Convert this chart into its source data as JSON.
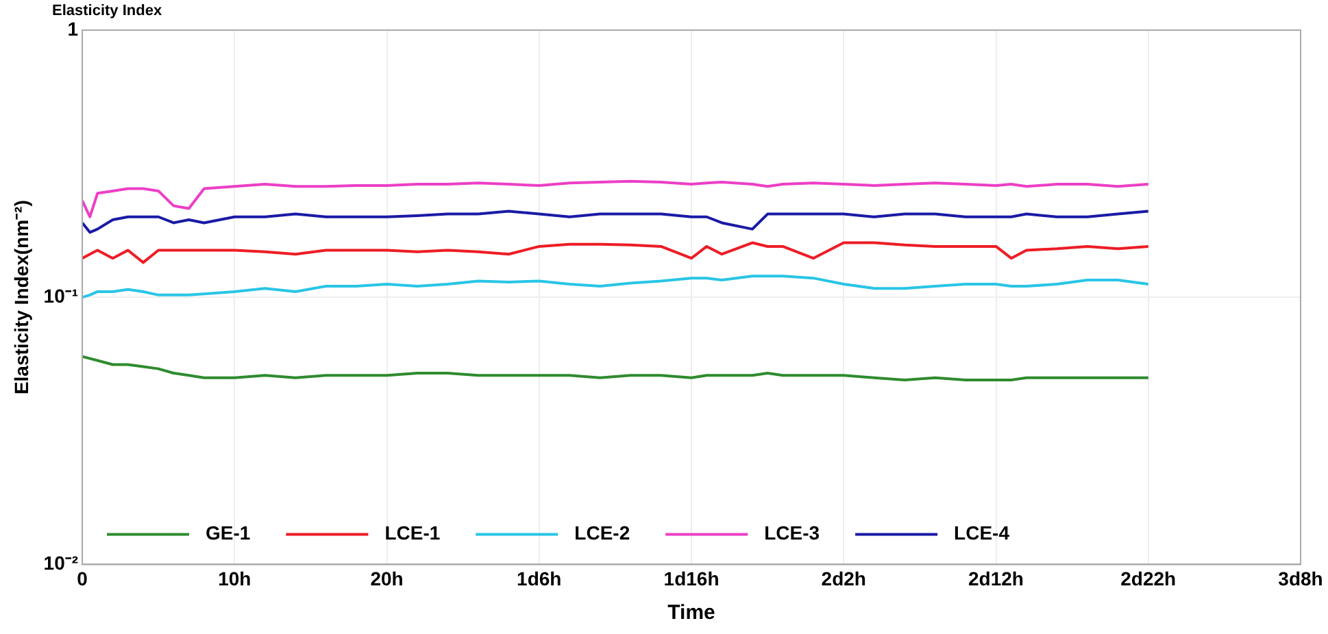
{
  "chart_data": {
    "type": "line",
    "title": "Elasticity Index",
    "xlabel": "Time",
    "ylabel": "Elasticity Index(nm⁻²)",
    "log": "y",
    "grid": true,
    "legend": "bottom left",
    "marker": "none",
    "line_style": "solid",
    "x": [
      0,
      0.5,
      1,
      2,
      3,
      4,
      5,
      6,
      7,
      8,
      10,
      12,
      14,
      16,
      18,
      20,
      22,
      24,
      26,
      28,
      30,
      32,
      34,
      36,
      38,
      40,
      41,
      42,
      44,
      45,
      46,
      48,
      50,
      52,
      54,
      56,
      58,
      60,
      61,
      62,
      64,
      66,
      68,
      70
    ],
    "xlim": [
      0,
      80
    ],
    "xticks": [
      {
        "value": 0,
        "label": "0"
      },
      {
        "value": 10,
        "label": "10h"
      },
      {
        "value": 20,
        "label": "20h"
      },
      {
        "value": 30,
        "label": "1d6h"
      },
      {
        "value": 40,
        "label": "1d16h"
      },
      {
        "value": 50,
        "label": "2d2h"
      },
      {
        "value": 60,
        "label": "2d12h"
      },
      {
        "value": 70,
        "label": "2d22h"
      },
      {
        "value": 80,
        "label": "3d8h"
      }
    ],
    "ylim": [
      0.01,
      1
    ],
    "yticks": [
      {
        "value": 0.01,
        "label": "10⁻²"
      },
      {
        "value": 0.1,
        "label": "10⁻¹"
      },
      {
        "value": 1,
        "label": "1"
      }
    ],
    "series": [
      {
        "name": "GE-1",
        "color": "#2e8b2e",
        "values": [
          0.06,
          0.059,
          0.058,
          0.056,
          0.056,
          0.055,
          0.054,
          0.052,
          0.051,
          0.05,
          0.05,
          0.051,
          0.05,
          0.051,
          0.051,
          0.051,
          0.052,
          0.052,
          0.051,
          0.051,
          0.051,
          0.051,
          0.05,
          0.051,
          0.051,
          0.05,
          0.051,
          0.051,
          0.051,
          0.052,
          0.051,
          0.051,
          0.051,
          0.05,
          0.049,
          0.05,
          0.049,
          0.049,
          0.049,
          0.05,
          0.05,
          0.05,
          0.05,
          0.05
        ]
      },
      {
        "name": "LCE-1",
        "color": "#ee1c25",
        "values": [
          0.14,
          0.145,
          0.15,
          0.14,
          0.15,
          0.135,
          0.15,
          0.15,
          0.15,
          0.15,
          0.15,
          0.148,
          0.145,
          0.15,
          0.15,
          0.15,
          0.148,
          0.15,
          0.148,
          0.145,
          0.155,
          0.158,
          0.158,
          0.157,
          0.155,
          0.14,
          0.155,
          0.145,
          0.16,
          0.155,
          0.155,
          0.14,
          0.16,
          0.16,
          0.157,
          0.155,
          0.155,
          0.155,
          0.14,
          0.15,
          0.152,
          0.155,
          0.152,
          0.155
        ]
      },
      {
        "name": "LCE-2",
        "color": "#29c5e6",
        "values": [
          0.1,
          0.102,
          0.105,
          0.105,
          0.107,
          0.105,
          0.102,
          0.102,
          0.102,
          0.103,
          0.105,
          0.108,
          0.105,
          0.11,
          0.11,
          0.112,
          0.11,
          0.112,
          0.115,
          0.114,
          0.115,
          0.112,
          0.11,
          0.113,
          0.115,
          0.118,
          0.118,
          0.116,
          0.12,
          0.12,
          0.12,
          0.118,
          0.112,
          0.108,
          0.108,
          0.11,
          0.112,
          0.112,
          0.11,
          0.11,
          0.112,
          0.116,
          0.116,
          0.112
        ]
      },
      {
        "name": "LCE-3",
        "color": "#ec3fc6",
        "values": [
          0.23,
          0.2,
          0.245,
          0.25,
          0.255,
          0.255,
          0.25,
          0.22,
          0.215,
          0.255,
          0.26,
          0.265,
          0.26,
          0.26,
          0.262,
          0.262,
          0.265,
          0.265,
          0.268,
          0.265,
          0.262,
          0.268,
          0.27,
          0.272,
          0.27,
          0.265,
          0.268,
          0.27,
          0.265,
          0.26,
          0.265,
          0.268,
          0.265,
          0.262,
          0.265,
          0.268,
          0.265,
          0.262,
          0.265,
          0.26,
          0.265,
          0.265,
          0.26,
          0.265
        ]
      },
      {
        "name": "LCE-4",
        "color": "#1a1aa6",
        "values": [
          0.19,
          0.175,
          0.18,
          0.195,
          0.2,
          0.2,
          0.2,
          0.19,
          0.195,
          0.19,
          0.2,
          0.2,
          0.205,
          0.2,
          0.2,
          0.2,
          0.202,
          0.205,
          0.205,
          0.21,
          0.205,
          0.2,
          0.205,
          0.205,
          0.205,
          0.2,
          0.2,
          0.19,
          0.18,
          0.205,
          0.205,
          0.205,
          0.205,
          0.2,
          0.205,
          0.205,
          0.2,
          0.2,
          0.2,
          0.205,
          0.2,
          0.2,
          0.205,
          0.21
        ]
      }
    ]
  }
}
